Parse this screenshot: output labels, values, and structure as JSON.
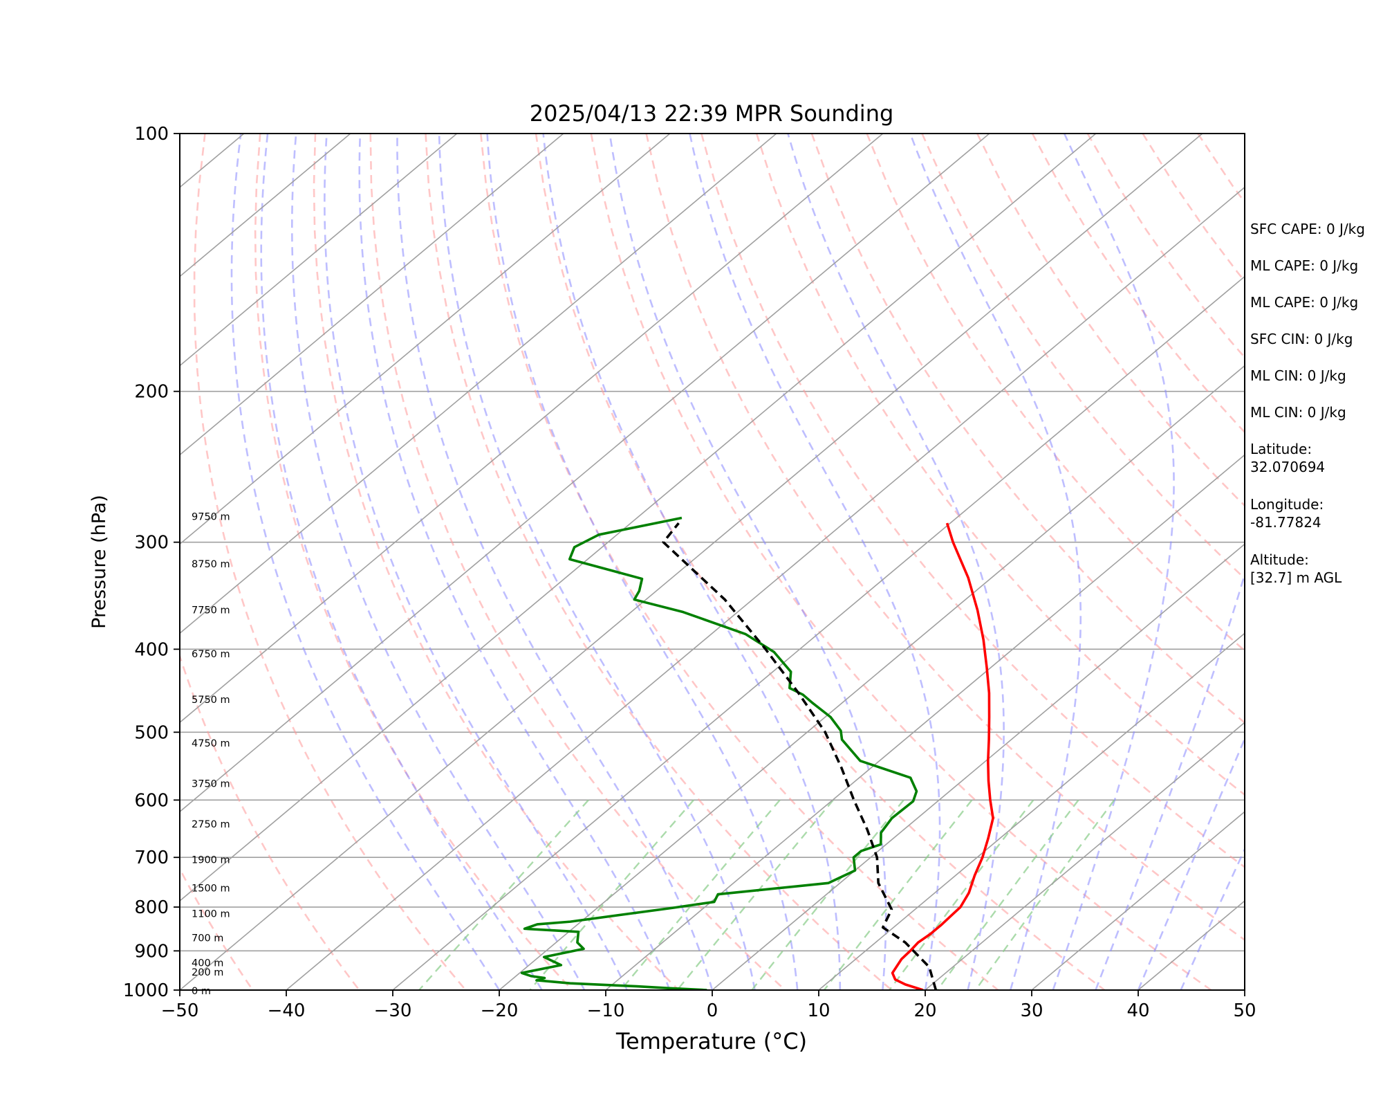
{
  "chart_data": {
    "type": "line",
    "title": "2025/04/13 22:39 MPR Sounding",
    "xlabel": "Temperature (°C)",
    "ylabel": "Pressure (hPa)",
    "xlim": [
      -50,
      50
    ],
    "ylim": [
      1000,
      100
    ],
    "y_scale": "log",
    "skew": true,
    "grid": true,
    "x_ticks": [
      "−50",
      "−40",
      "−30",
      "−20",
      "−10",
      "0",
      "10",
      "20",
      "30",
      "40",
      "50"
    ],
    "y_ticks": [
      {
        "p": 100,
        "label": "100"
      },
      {
        "p": 200,
        "label": "200"
      },
      {
        "p": 300,
        "label": "300"
      },
      {
        "p": 400,
        "label": "400"
      },
      {
        "p": 500,
        "label": "500"
      },
      {
        "p": 600,
        "label": "600"
      },
      {
        "p": 700,
        "label": "700"
      },
      {
        "p": 800,
        "label": "800"
      },
      {
        "p": 900,
        "label": "900"
      },
      {
        "p": 1000,
        "label": "1000"
      }
    ],
    "height_labels": [
      {
        "p": 280,
        "label": "9750 m"
      },
      {
        "p": 318,
        "label": "8750 m"
      },
      {
        "p": 360,
        "label": "7750 m"
      },
      {
        "p": 405,
        "label": "6750 m"
      },
      {
        "p": 458,
        "label": "5750 m"
      },
      {
        "p": 515,
        "label": "4750 m"
      },
      {
        "p": 574,
        "label": "3750 m"
      },
      {
        "p": 640,
        "label": "2750 m"
      },
      {
        "p": 704,
        "label": "1900 m"
      },
      {
        "p": 760,
        "label": "1500 m"
      },
      {
        "p": 814,
        "label": "1100 m"
      },
      {
        "p": 869,
        "label": "700 m"
      },
      {
        "p": 929,
        "label": "400 m"
      },
      {
        "p": 953,
        "label": "200 m"
      },
      {
        "p": 1002,
        "label": "0 m"
      }
    ],
    "series": [
      {
        "name": "",
        "role": "temperature",
        "color": "#ff0000",
        "points": [
          [
            19.8,
            1000
          ],
          [
            17.5,
            985
          ],
          [
            16.0,
            972
          ],
          [
            15.0,
            955
          ],
          [
            14.3,
            920
          ],
          [
            14.2,
            900
          ],
          [
            14.0,
            880
          ],
          [
            14.2,
            860
          ],
          [
            14.2,
            840
          ],
          [
            14.1,
            820
          ],
          [
            14.0,
            800
          ],
          [
            13.2,
            770
          ],
          [
            11.8,
            735
          ],
          [
            10.5,
            700
          ],
          [
            8.9,
            665
          ],
          [
            7.1,
            630
          ],
          [
            4.8,
            600
          ],
          [
            2.5,
            570
          ],
          [
            0.2,
            540
          ],
          [
            -2.1,
            510
          ],
          [
            -4.6,
            480
          ],
          [
            -7.3,
            450
          ],
          [
            -10.4,
            420
          ],
          [
            -13.8,
            390
          ],
          [
            -17.7,
            360
          ],
          [
            -22.2,
            330
          ],
          [
            -27.6,
            300
          ],
          [
            -30.3,
            285
          ]
        ]
      },
      {
        "name": "",
        "role": "dewpoint",
        "color": "#008000",
        "points": [
          [
            -0.5,
            1000
          ],
          [
            -4.2,
            995
          ],
          [
            -7.5,
            990
          ],
          [
            -14.1,
            982
          ],
          [
            -17.6,
            974
          ],
          [
            -17.1,
            968
          ],
          [
            -18.6,
            963
          ],
          [
            -19.8,
            955
          ],
          [
            -17.0,
            935
          ],
          [
            -19.5,
            915
          ],
          [
            -16.7,
            895
          ],
          [
            -18.0,
            880
          ],
          [
            -19.1,
            855
          ],
          [
            -24.5,
            848
          ],
          [
            -23.8,
            838
          ],
          [
            -21.0,
            832
          ],
          [
            -13.0,
            802
          ],
          [
            -9.7,
            789
          ],
          [
            -10.2,
            773
          ],
          [
            -1.1,
            750
          ],
          [
            0.0,
            725
          ],
          [
            -1.6,
            700
          ],
          [
            -1.6,
            688
          ],
          [
            -0.5,
            676
          ],
          [
            -1.8,
            655
          ],
          [
            -2.4,
            630
          ],
          [
            -2.3,
            602
          ],
          [
            -3.1,
            586
          ],
          [
            -5.2,
            565
          ],
          [
            -11.8,
            540
          ],
          [
            -15.9,
            510
          ],
          [
            -17.0,
            498
          ],
          [
            -19.5,
            480
          ],
          [
            -22.8,
            462
          ],
          [
            -24.6,
            452
          ],
          [
            -26.6,
            444
          ],
          [
            -28.3,
            425
          ],
          [
            -32.1,
            403
          ],
          [
            -36.8,
            384
          ],
          [
            -45.1,
            362
          ],
          [
            -51.1,
            350
          ],
          [
            -51.6,
            342
          ],
          [
            -52.7,
            331
          ],
          [
            -61.7,
            314
          ],
          [
            -62.6,
            304
          ],
          [
            -61.7,
            294
          ],
          [
            -55.8,
            281
          ]
        ]
      },
      {
        "name": "",
        "role": "parcel",
        "color": "#000000",
        "dashed": true,
        "points": [
          [
            21.0,
            1000
          ],
          [
            17.8,
            940
          ],
          [
            12.8,
            880
          ],
          [
            9.0,
            845
          ],
          [
            7.8,
            805
          ],
          [
            3.6,
            750
          ],
          [
            0.6,
            700
          ],
          [
            -3.4,
            650
          ],
          [
            -8.0,
            600
          ],
          [
            -12.8,
            550
          ],
          [
            -18.3,
            500
          ],
          [
            -25.2,
            450
          ],
          [
            -33.2,
            400
          ],
          [
            -42.6,
            350
          ],
          [
            -54.8,
            300
          ],
          [
            -55.5,
            285
          ]
        ]
      }
    ]
  },
  "side_panel": {
    "sfc_cape": "SFC CAPE: 0 J/kg",
    "ml_cape_1": "ML CAPE: 0 J/kg",
    "ml_cape_2": "ML CAPE: 0 J/kg",
    "sfc_cin": "SFC CIN: 0 J/kg",
    "ml_cin_1": "ML CIN: 0 J/kg",
    "ml_cin_2": "ML CIN: 0 J/kg",
    "latitude_label": "Latitude:",
    "latitude_value": "32.070694",
    "longitude_label": "Longitude:",
    "longitude_value": "-81.77824",
    "altitude_label": "Altitude:",
    "altitude_value": "[32.7] m AGL"
  },
  "colors": {
    "temperature": "#ff0000",
    "dewpoint": "#008000",
    "parcel": "#000000",
    "dry_adiabats": "#ff9999",
    "moist_adiabats": "#8888ff",
    "mixing_ratio": "#88cc88",
    "isotherms": "#a0a0a0"
  }
}
